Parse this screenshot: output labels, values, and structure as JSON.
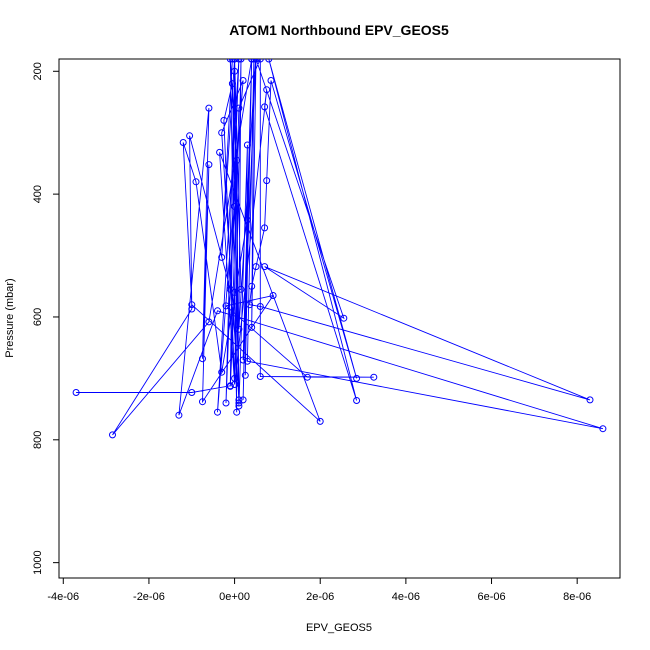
{
  "chart_data": {
    "type": "line",
    "title": "ATOM1 Northbound EPV_GEOS5",
    "xlabel": "EPV_GEOS5",
    "ylabel": "Pressure (mbar)",
    "xlim": [
      -4.1e-06,
      9e-06
    ],
    "ylim": [
      1025,
      180
    ],
    "y_reversed": true,
    "grid": false,
    "marker": "open-circle",
    "line_color": "#0000ff",
    "x_ticks": [
      {
        "value": -4e-06,
        "label": "-4e-06"
      },
      {
        "value": -2e-06,
        "label": "-2e-06"
      },
      {
        "value": 0,
        "label": "0e+00"
      },
      {
        "value": 2e-06,
        "label": "2e-06"
      },
      {
        "value": 4e-06,
        "label": "4e-06"
      },
      {
        "value": 6e-06,
        "label": "6e-06"
      },
      {
        "value": 8e-06,
        "label": "8e-06"
      }
    ],
    "y_ticks": [
      {
        "value": 200,
        "label": "200"
      },
      {
        "value": 400,
        "label": "400"
      },
      {
        "value": 600,
        "label": "600"
      },
      {
        "value": 800,
        "label": "800"
      },
      {
        "value": 1000,
        "label": "1000"
      }
    ],
    "series": [
      {
        "points": [
          {
            "x": -3.7e-06,
            "y": 723
          },
          {
            "x": -1e-06,
            "y": 723
          },
          {
            "x": -1e-07,
            "y": 712
          },
          {
            "x": 0.0,
            "y": 200
          },
          {
            "x": -2e-07,
            "y": 740
          },
          {
            "x": 1e-07,
            "y": 180
          },
          {
            "x": -4e-07,
            "y": 755
          },
          {
            "x": 2e-07,
            "y": 215
          },
          {
            "x": -3e-07,
            "y": 300
          },
          {
            "x": 1e-07,
            "y": 735
          },
          {
            "x": 0.0,
            "y": 180
          },
          {
            "x": 5e-08,
            "y": 755
          },
          {
            "x": -1e-07,
            "y": 180
          },
          {
            "x": 5e-08,
            "y": 345
          },
          {
            "x": 1e-07,
            "y": 740
          },
          {
            "x": -5e-08,
            "y": 220
          },
          {
            "x": -2.5e-07,
            "y": 280
          },
          {
            "x": 0.0,
            "y": 700
          },
          {
            "x": 1.5e-07,
            "y": 180
          },
          {
            "x": 1e-07,
            "y": 620
          },
          {
            "x": 5e-07,
            "y": 170
          },
          {
            "x": 2e-07,
            "y": 670
          },
          {
            "x": 4e-07,
            "y": 180
          },
          {
            "x": 2.5e-07,
            "y": 695
          },
          {
            "x": 3e-07,
            "y": 320
          },
          {
            "x": 1e-07,
            "y": 745
          },
          {
            "x": 0.0,
            "y": 420
          },
          {
            "x": -1e-07,
            "y": 555
          },
          {
            "x": -1.05e-06,
            "y": 305
          },
          {
            "x": -1e-06,
            "y": 587
          },
          {
            "x": -2.85e-06,
            "y": 792
          },
          {
            "x": -6e-07,
            "y": 608
          },
          {
            "x": 4e-07,
            "y": 180
          },
          {
            "x": 2e-07,
            "y": 735
          },
          {
            "x": 3e-07,
            "y": 442
          },
          {
            "x": -3e-07,
            "y": 690
          },
          {
            "x": -9e-07,
            "y": 380
          },
          {
            "x": -1.2e-06,
            "y": 316
          },
          {
            "x": -1e-06,
            "y": 580
          },
          {
            "x": 2e-06,
            "y": 770
          },
          {
            "x": -3.5e-07,
            "y": 332
          },
          {
            "x": 0.0,
            "y": 710
          },
          {
            "x": 7.5e-07,
            "y": 230
          },
          {
            "x": 7e-07,
            "y": 258
          },
          {
            "x": 2.85e-06,
            "y": 736
          },
          {
            "x": 8e-07,
            "y": 180
          },
          {
            "x": 2.85e-06,
            "y": 700
          },
          {
            "x": 8.5e-07,
            "y": 215
          },
          {
            "x": 7.5e-07,
            "y": 378
          },
          {
            "x": 7e-07,
            "y": 455
          },
          {
            "x": 5e-07,
            "y": 518
          },
          {
            "x": 4e-07,
            "y": 550
          },
          {
            "x": 3.5e-07,
            "y": 580
          },
          {
            "x": 6e-07,
            "y": 583
          },
          {
            "x": 8.3e-06,
            "y": 735
          },
          {
            "x": 7e-07,
            "y": 518
          },
          {
            "x": 2.55e-06,
            "y": 602
          },
          {
            "x": 5e-07,
            "y": 180
          },
          {
            "x": 4e-07,
            "y": 617
          },
          {
            "x": 4.5e-07,
            "y": 180
          },
          {
            "x": 3e-07,
            "y": 672
          },
          {
            "x": 8.6e-06,
            "y": 782
          },
          {
            "x": -4e-07,
            "y": 590
          },
          {
            "x": -1.3e-06,
            "y": 760
          },
          {
            "x": -6e-07,
            "y": 260
          },
          {
            "x": -7.5e-07,
            "y": 668
          },
          {
            "x": -6e-07,
            "y": 352
          },
          {
            "x": -7.5e-07,
            "y": 738
          },
          {
            "x": 9e-07,
            "y": 565
          },
          {
            "x": -2e-07,
            "y": 582
          },
          {
            "x": 1.7e-06,
            "y": 698
          },
          {
            "x": 3.25e-06,
            "y": 698
          },
          {
            "x": 6e-07,
            "y": 697
          },
          {
            "x": 6e-07,
            "y": 180
          },
          {
            "x": 1e-07,
            "y": 260
          },
          {
            "x": -1e-07,
            "y": 713
          },
          {
            "x": 0.0,
            "y": 560
          },
          {
            "x": 1.5e-07,
            "y": 555
          },
          {
            "x": 0.0,
            "y": 180
          },
          {
            "x": -3e-07,
            "y": 503
          },
          {
            "x": -5e-08,
            "y": 180
          }
        ]
      }
    ]
  }
}
